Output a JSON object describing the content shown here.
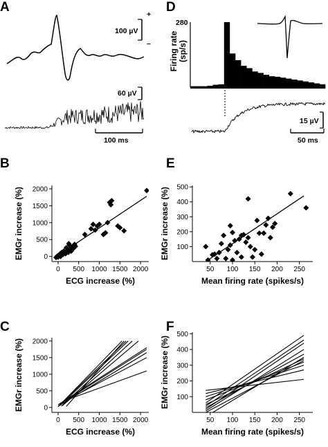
{
  "panels": {
    "A": {
      "letter": "A",
      "scale_upper": "100 µV",
      "scale_lower": "60 µV",
      "scale_time": "100 ms",
      "polarity_plus": "+",
      "polarity_minus": "–"
    },
    "D": {
      "letter": "D",
      "ylabel_line1": "Firing rate",
      "ylabel_line2": "(sp/s)",
      "ymax_label": "280",
      "histogram_bins": [
        10,
        10,
        10,
        12,
        16,
        18,
        280,
        148,
        120,
        96,
        86,
        72,
        66,
        58,
        52,
        50,
        46,
        42,
        38,
        34,
        30,
        26,
        22,
        18
      ],
      "scale_voltage": "15 µV",
      "scale_time": "50 ms"
    }
  },
  "chart_data": [
    {
      "panel": "B",
      "type": "scatter",
      "xlabel": "ECG increase (%)",
      "ylabel": "EMGr increase (%)",
      "xlim": [
        -150,
        2200
      ],
      "ylim": [
        -150,
        2100
      ],
      "xticks": [
        0,
        500,
        1000,
        1500,
        2000
      ],
      "yticks": [
        0,
        500,
        1000,
        1500,
        2000
      ],
      "points": [
        [
          -50,
          -30
        ],
        [
          -20,
          10
        ],
        [
          0,
          -20
        ],
        [
          20,
          40
        ],
        [
          50,
          80
        ],
        [
          60,
          0
        ],
        [
          80,
          30
        ],
        [
          90,
          120
        ],
        [
          120,
          60
        ],
        [
          140,
          160
        ],
        [
          180,
          80
        ],
        [
          200,
          260
        ],
        [
          220,
          180
        ],
        [
          250,
          120
        ],
        [
          260,
          380
        ],
        [
          280,
          330
        ],
        [
          300,
          220
        ],
        [
          320,
          160
        ],
        [
          350,
          280
        ],
        [
          380,
          250
        ],
        [
          400,
          360
        ],
        [
          420,
          300
        ],
        [
          650,
          650
        ],
        [
          800,
          820
        ],
        [
          850,
          950
        ],
        [
          900,
          780
        ],
        [
          950,
          900
        ],
        [
          1000,
          950
        ],
        [
          1100,
          650
        ],
        [
          1150,
          700
        ],
        [
          1200,
          1000
        ],
        [
          1250,
          1600
        ],
        [
          1280,
          1530
        ],
        [
          1300,
          1650
        ],
        [
          1450,
          900
        ],
        [
          1500,
          850
        ],
        [
          1600,
          760
        ],
        [
          2150,
          1950
        ]
      ],
      "fit": [
        [
          0,
          30
        ],
        [
          2150,
          1780
        ]
      ]
    },
    {
      "panel": "C",
      "type": "line",
      "xlabel": "ECG increase (%)",
      "ylabel": "EMGr increase (%)",
      "xlim": [
        -150,
        2200
      ],
      "ylim": [
        -150,
        2100
      ],
      "xticks": [
        0,
        500,
        1000,
        1500,
        2000
      ],
      "yticks": [
        0,
        500,
        1000,
        1500,
        2000
      ],
      "lines": [
        [
          [
            0,
            20
          ],
          [
            1550,
            2000
          ]
        ],
        [
          [
            0,
            30
          ],
          [
            1650,
            2000
          ]
        ],
        [
          [
            50,
            60
          ],
          [
            1700,
            2000
          ]
        ],
        [
          [
            80,
            40
          ],
          [
            1800,
            2000
          ]
        ],
        [
          [
            100,
            50
          ],
          [
            1950,
            2000
          ]
        ],
        [
          [
            0,
            80
          ],
          [
            2150,
            1800
          ]
        ],
        [
          [
            50,
            100
          ],
          [
            2150,
            1750
          ]
        ],
        [
          [
            20,
            50
          ],
          [
            2150,
            1650
          ]
        ],
        [
          [
            100,
            150
          ],
          [
            2150,
            1500
          ]
        ],
        [
          [
            150,
            200
          ],
          [
            2150,
            1100
          ]
        ],
        [
          [
            200,
            30
          ],
          [
            1600,
            2000
          ]
        ]
      ]
    },
    {
      "panel": "E",
      "type": "scatter",
      "xlabel": "Mean firing rate (spikes/s)",
      "ylabel": "EMGr increase (%)",
      "xlim": [
        10,
        280
      ],
      "ylim": [
        0,
        510
      ],
      "xticks": [
        50,
        100,
        150,
        200,
        250
      ],
      "yticks": [
        100,
        200,
        300,
        400,
        500
      ],
      "points": [
        [
          40,
          100
        ],
        [
          45,
          10
        ],
        [
          55,
          45
        ],
        [
          60,
          50
        ],
        [
          65,
          20
        ],
        [
          70,
          60
        ],
        [
          75,
          120
        ],
        [
          80,
          175
        ],
        [
          85,
          20
        ],
        [
          90,
          80
        ],
        [
          95,
          240
        ],
        [
          95,
          110
        ],
        [
          100,
          195
        ],
        [
          100,
          10
        ],
        [
          105,
          140
        ],
        [
          110,
          60
        ],
        [
          115,
          150
        ],
        [
          120,
          175
        ],
        [
          120,
          30
        ],
        [
          125,
          180
        ],
        [
          130,
          130
        ],
        [
          135,
          420
        ],
        [
          135,
          160
        ],
        [
          140,
          100
        ],
        [
          145,
          30
        ],
        [
          150,
          80
        ],
        [
          155,
          275
        ],
        [
          160,
          190
        ],
        [
          165,
          50
        ],
        [
          170,
          190
        ],
        [
          175,
          245
        ],
        [
          180,
          290
        ],
        [
          185,
          160
        ],
        [
          190,
          230
        ],
        [
          195,
          255
        ],
        [
          230,
          455
        ],
        [
          265,
          360
        ]
      ],
      "fit": [
        [
          40,
          0
        ],
        [
          260,
          440
        ]
      ]
    },
    {
      "panel": "F",
      "type": "line",
      "xlabel": "Mean firing rate (spikes/s)",
      "ylabel": "EMGr increase (%)",
      "xlim": [
        10,
        280
      ],
      "ylim": [
        0,
        510
      ],
      "xticks": [
        50,
        100,
        150,
        200,
        250
      ],
      "yticks": [
        100,
        200,
        300,
        400,
        500
      ],
      "lines": [
        [
          [
            40,
            60
          ],
          [
            260,
            490
          ]
        ],
        [
          [
            40,
            40
          ],
          [
            260,
            460
          ]
        ],
        [
          [
            40,
            20
          ],
          [
            260,
            440
          ]
        ],
        [
          [
            40,
            10
          ],
          [
            260,
            400
          ]
        ],
        [
          [
            40,
            30
          ],
          [
            260,
            370
          ]
        ],
        [
          [
            40,
            50
          ],
          [
            260,
            340
          ]
        ],
        [
          [
            40,
            80
          ],
          [
            260,
            320
          ]
        ],
        [
          [
            40,
            100
          ],
          [
            260,
            300
          ]
        ],
        [
          [
            40,
            120
          ],
          [
            260,
            270
          ]
        ],
        [
          [
            40,
            140
          ],
          [
            260,
            210
          ]
        ],
        [
          [
            40,
            0
          ],
          [
            260,
            330
          ]
        ],
        [
          [
            50,
            -10
          ],
          [
            260,
            350
          ]
        ]
      ]
    }
  ]
}
